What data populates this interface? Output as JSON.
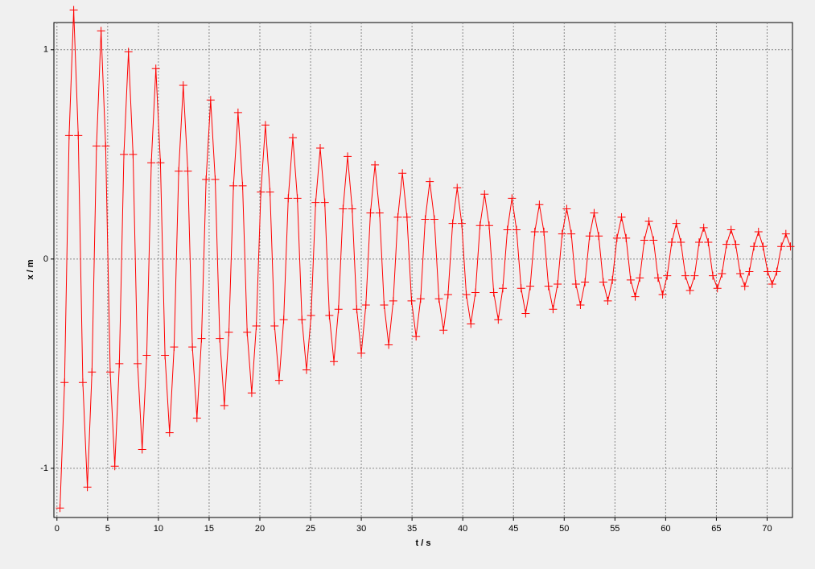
{
  "chart_data": {
    "type": "line",
    "xlabel": "t / s",
    "ylabel": "x / m",
    "xlim": [
      -0.3,
      72.5
    ],
    "ylim": [
      -1.235,
      1.13
    ],
    "xticks": [
      0,
      5,
      10,
      15,
      20,
      25,
      30,
      35,
      40,
      45,
      50,
      55,
      60,
      65,
      70
    ],
    "yticks": [
      -1,
      0,
      1
    ],
    "grid": true,
    "marker": "plus",
    "x": [
      0.3,
      0.75,
      1.2,
      1.65,
      2.1,
      2.55,
      3.0,
      3.45,
      3.9,
      4.35,
      4.8,
      5.25,
      5.7,
      6.15,
      6.6,
      7.05,
      7.5,
      7.95,
      8.4,
      8.85,
      9.3,
      9.75,
      10.2,
      10.65,
      11.1,
      11.55,
      12.0,
      12.45,
      12.9,
      13.35,
      13.8,
      14.25,
      14.7,
      15.15,
      15.6,
      16.05,
      16.5,
      16.95,
      17.4,
      17.85,
      18.3,
      18.75,
      19.2,
      19.65,
      20.1,
      20.55,
      21.0,
      21.45,
      21.9,
      22.35,
      22.8,
      23.25,
      23.7,
      24.15,
      24.6,
      25.05,
      25.5,
      25.95,
      26.4,
      26.85,
      27.3,
      27.75,
      28.2,
      28.65,
      29.1,
      29.55,
      30.0,
      30.45,
      30.9,
      31.35,
      31.8,
      32.25,
      32.7,
      33.15,
      33.6,
      34.05,
      34.5,
      34.95,
      35.4,
      35.85,
      36.3,
      36.75,
      37.2,
      37.65,
      38.1,
      38.55,
      39.0,
      39.45,
      39.9,
      40.35,
      40.8,
      41.25,
      41.7,
      42.15,
      42.6,
      43.05,
      43.5,
      43.95,
      44.4,
      44.85,
      45.3,
      45.75,
      46.2,
      46.65,
      47.1,
      47.55,
      48.0,
      48.45,
      48.9,
      49.35,
      49.8,
      50.25,
      50.7,
      51.15,
      51.6,
      52.05,
      52.5,
      52.95,
      53.4,
      53.85,
      54.3,
      54.75,
      55.2,
      55.65,
      56.1,
      56.55,
      57.0,
      57.45,
      57.9,
      58.35,
      58.8,
      59.25,
      59.7,
      60.15,
      60.6,
      61.05,
      61.5,
      61.95,
      62.4,
      62.85,
      63.3,
      63.75,
      64.2,
      64.65,
      65.1,
      65.55,
      66.0,
      66.45,
      66.9,
      67.35,
      67.8,
      68.25,
      68.7,
      69.15,
      69.6,
      70.05,
      70.5,
      70.95,
      71.4,
      71.85,
      72.3
    ],
    "series": [
      {
        "color": "#ff0000",
        "values": [
          -1.19,
          -0.59,
          0.59,
          1.19,
          0.59,
          -0.59,
          -1.09,
          -0.54,
          0.54,
          1.09,
          0.54,
          -0.54,
          -0.99,
          -0.5,
          0.5,
          0.99,
          0.5,
          -0.5,
          -0.91,
          -0.46,
          0.46,
          0.91,
          0.46,
          -0.46,
          -0.83,
          -0.42,
          0.42,
          0.83,
          0.42,
          -0.42,
          -0.76,
          -0.38,
          0.38,
          0.76,
          0.38,
          -0.38,
          -0.7,
          -0.35,
          0.35,
          0.7,
          0.35,
          -0.35,
          -0.64,
          -0.32,
          0.32,
          0.64,
          0.32,
          -0.32,
          -0.58,
          -0.29,
          0.29,
          0.58,
          0.29,
          -0.29,
          -0.53,
          -0.27,
          0.27,
          0.53,
          0.27,
          -0.27,
          -0.49,
          -0.24,
          0.24,
          0.49,
          0.24,
          -0.24,
          -0.45,
          -0.22,
          0.22,
          0.45,
          0.22,
          -0.22,
          -0.41,
          -0.2,
          0.2,
          0.41,
          0.2,
          -0.2,
          -0.37,
          -0.19,
          0.19,
          0.37,
          0.19,
          -0.19,
          -0.34,
          -0.17,
          0.17,
          0.34,
          0.17,
          -0.17,
          -0.31,
          -0.16,
          0.16,
          0.31,
          0.16,
          -0.16,
          -0.29,
          -0.14,
          0.14,
          0.29,
          0.14,
          -0.14,
          -0.26,
          -0.13,
          0.13,
          0.26,
          0.13,
          -0.13,
          -0.24,
          -0.12,
          0.12,
          0.24,
          0.12,
          -0.12,
          -0.22,
          -0.11,
          0.11,
          0.22,
          0.11,
          -0.11,
          -0.2,
          -0.1,
          0.1,
          0.2,
          0.1,
          -0.1,
          -0.18,
          -0.09,
          0.09,
          0.18,
          0.09,
          -0.09,
          -0.17,
          -0.08,
          0.08,
          0.17,
          0.08,
          -0.08,
          -0.15,
          -0.08,
          0.08,
          0.15,
          0.08,
          -0.08,
          -0.14,
          -0.07,
          0.07,
          0.14,
          0.07,
          -0.07,
          -0.13,
          -0.06,
          0.06,
          0.13,
          0.06,
          -0.06,
          -0.12,
          -0.06,
          0.06,
          0.12,
          0.06
        ]
      }
    ]
  }
}
